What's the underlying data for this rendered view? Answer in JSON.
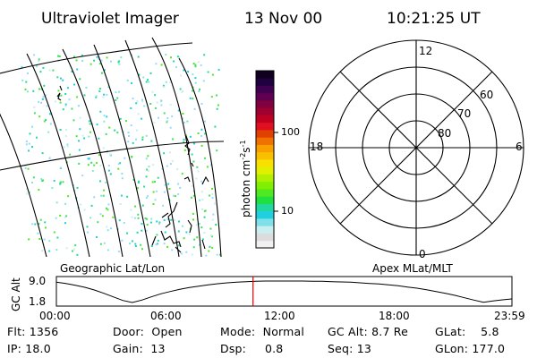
{
  "header": {
    "instrument": "Ultraviolet Imager",
    "date": "13 Nov 00",
    "time": "10:21:25 UT"
  },
  "geo_panel": {
    "label": "Geographic Lat/Lon"
  },
  "colorbar": {
    "label": "photon cm",
    "sup1": "-2",
    "mid": "s",
    "sup2": "-1",
    "ticks": [
      "100",
      "10"
    ],
    "colors": [
      "#f0f0f0",
      "#dcdcdc",
      "#c8eef0",
      "#80e0e8",
      "#20d0e0",
      "#20d8a0",
      "#20e040",
      "#50e820",
      "#80f000",
      "#b0f000",
      "#e0f000",
      "#f8e000",
      "#f8c000",
      "#f8a000",
      "#f07000",
      "#e04000",
      "#e01020",
      "#c00020",
      "#a00030",
      "#800040",
      "#600050",
      "#400050",
      "#200040",
      "#100020"
    ]
  },
  "polar_panel": {
    "label": "Apex MLat/MLT",
    "mlt_labels": {
      "top": "12",
      "right": "6",
      "bottom": "0",
      "left": "18"
    },
    "lat_labels": [
      "60",
      "70",
      "80"
    ]
  },
  "chart_data": {
    "type": "line",
    "title": "",
    "xlabel": "",
    "ylabel": "GC Alt",
    "x_ticks": [
      "00:00",
      "06:00",
      "12:00",
      "18:00",
      "23:59"
    ],
    "y_ticks": [
      "9.0",
      "1.8"
    ],
    "ylim": [
      1.8,
      9.0
    ],
    "xlim_hours": [
      0,
      24
    ],
    "series": [
      {
        "x": [
          0,
          0.5,
          1,
          1.5,
          2,
          2.5,
          3,
          3.5,
          4.0,
          4.5,
          5,
          5.5,
          6,
          6.5,
          7,
          7.5,
          8,
          8.5,
          9,
          9.5,
          10,
          10.5,
          11,
          11.5,
          12,
          12.5,
          13,
          13.5,
          14,
          14.5,
          15,
          15.5,
          16,
          16.5,
          17,
          17.5,
          18,
          18.5,
          19,
          19.5,
          20,
          20.5,
          21,
          21.5,
          22,
          22.5,
          23,
          23.5,
          23.98
        ],
        "y": [
          8.6,
          8.2,
          7.6,
          6.9,
          6.0,
          4.9,
          3.7,
          2.5,
          1.8,
          2.6,
          3.7,
          4.7,
          5.5,
          6.2,
          6.8,
          7.3,
          7.7,
          8.1,
          8.4,
          8.6,
          8.8,
          8.9,
          9.0,
          9.0,
          9.0,
          9.0,
          9.0,
          8.9,
          8.9,
          8.8,
          8.7,
          8.6,
          8.4,
          8.2,
          8.0,
          7.7,
          7.4,
          7.0,
          6.6,
          6.1,
          5.5,
          4.9,
          4.2,
          3.4,
          2.6,
          1.9,
          2.3,
          2.7,
          3.0
        ]
      }
    ],
    "current_time_hours": 10.36
  },
  "info": {
    "row1": [
      {
        "key": "Flt:",
        "value": "1356"
      },
      {
        "key": "Door:",
        "value": "Open"
      },
      {
        "key": "Mode:",
        "value": "Normal"
      },
      {
        "key": "GC Alt:",
        "value": "8.7 Re"
      },
      {
        "key": "GLat:",
        "value": "5.8"
      }
    ],
    "row2": [
      {
        "key": "IP:",
        "value": "18.0"
      },
      {
        "key": "Gain:",
        "value": "13"
      },
      {
        "key": "Dsp:",
        "value": "0.8"
      },
      {
        "key": "Seq:",
        "value": "13"
      },
      {
        "key": "GLon:",
        "value": "177.0"
      }
    ]
  }
}
